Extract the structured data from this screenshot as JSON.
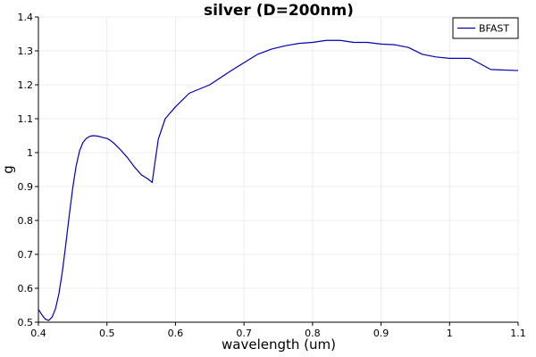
{
  "chart_data": {
    "type": "line",
    "title": "silver (D=200nm)",
    "xlabel": "wavelength (um)",
    "ylabel": "g",
    "xlim": [
      0.4,
      1.1
    ],
    "ylim": [
      0.5,
      1.4
    ],
    "xticks": [
      0.4,
      0.5,
      0.6,
      0.7,
      0.8,
      0.9,
      1,
      1.1
    ],
    "xtick_labels": [
      "0.4",
      "0.5",
      "0.6",
      "0.7",
      "0.8",
      "0.9",
      "1",
      "1.1"
    ],
    "yticks": [
      0.5,
      0.6,
      0.7,
      0.8,
      0.9,
      1,
      1.1,
      1.2,
      1.3,
      1.4
    ],
    "ytick_labels": [
      "0.5",
      "0.6",
      "0.7",
      "0.8",
      "0.9",
      "1",
      "1.1",
      "1.2",
      "1.3",
      "1.4"
    ],
    "grid": true,
    "legend_position": "top-right",
    "series": [
      {
        "name": "BFAST",
        "color": "#0000b4",
        "x": [
          0.4,
          0.405,
          0.41,
          0.415,
          0.42,
          0.425,
          0.43,
          0.435,
          0.44,
          0.445,
          0.45,
          0.455,
          0.46,
          0.465,
          0.47,
          0.475,
          0.48,
          0.485,
          0.49,
          0.495,
          0.5,
          0.505,
          0.51,
          0.515,
          0.52,
          0.53,
          0.54,
          0.55,
          0.56,
          0.566,
          0.57,
          0.575,
          0.585,
          0.6,
          0.62,
          0.65,
          0.68,
          0.7,
          0.72,
          0.74,
          0.76,
          0.78,
          0.8,
          0.82,
          0.84,
          0.86,
          0.88,
          0.9,
          0.92,
          0.94,
          0.96,
          0.98,
          1.0,
          1.03,
          1.06,
          1.1
        ],
        "values": [
          0.538,
          0.522,
          0.509,
          0.505,
          0.515,
          0.54,
          0.585,
          0.65,
          0.73,
          0.815,
          0.895,
          0.96,
          1.005,
          1.03,
          1.042,
          1.048,
          1.05,
          1.049,
          1.047,
          1.044,
          1.042,
          1.036,
          1.028,
          1.018,
          1.008,
          0.985,
          0.958,
          0.935,
          0.922,
          0.912,
          0.97,
          1.04,
          1.1,
          1.135,
          1.175,
          1.2,
          1.24,
          1.265,
          1.29,
          1.305,
          1.315,
          1.322,
          1.325,
          1.331,
          1.331,
          1.325,
          1.325,
          1.32,
          1.318,
          1.31,
          1.29,
          1.282,
          1.278,
          1.278,
          1.245,
          1.242
        ]
      }
    ]
  }
}
